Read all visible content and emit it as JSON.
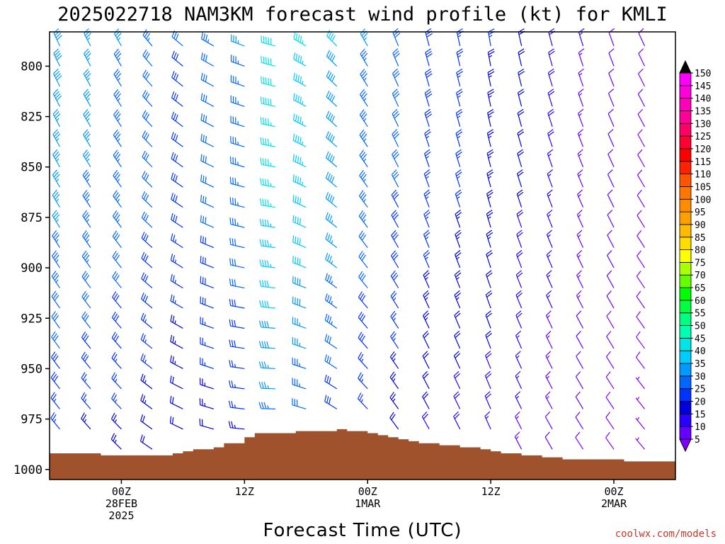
{
  "chart_data": {
    "type": "wind-barb time-height",
    "title": "2025022718 NAM3KM forecast wind profile (kt) for KMLI",
    "xlabel": "Forecast Time (UTC)",
    "credit": "coolwx.com/models",
    "y_axis": {
      "label": "",
      "scale": "pressure (hPa), inverted",
      "range": [
        1005,
        783
      ],
      "ticks": [
        800,
        825,
        850,
        875,
        900,
        925,
        950,
        975,
        1000
      ]
    },
    "x_axis": {
      "range_hours_from_00Z_28FEB": [
        -7,
        54
      ],
      "ticks": [
        {
          "hour": 0,
          "lines": [
            "00Z",
            "28FEB",
            "2025"
          ]
        },
        {
          "hour": 12,
          "lines": [
            "12Z"
          ]
        },
        {
          "hour": 24,
          "lines": [
            "00Z",
            "1MAR"
          ]
        },
        {
          "hour": 36,
          "lines": [
            "12Z"
          ]
        },
        {
          "hour": 48,
          "lines": [
            "00Z",
            "2MAR"
          ]
        }
      ]
    },
    "colorbar": {
      "units": "kt",
      "levels": [
        5,
        10,
        15,
        20,
        25,
        30,
        35,
        40,
        45,
        50,
        55,
        60,
        65,
        70,
        75,
        80,
        85,
        90,
        95,
        100,
        105,
        110,
        115,
        120,
        125,
        130,
        135,
        140,
        145,
        150
      ],
      "colors": [
        "#8000ff",
        "#6600ff",
        "#2a00ff",
        "#0000dd",
        "#0033ff",
        "#0066ff",
        "#0099ff",
        "#00ccff",
        "#00e5e5",
        "#00ffb0",
        "#00ff80",
        "#00ff40",
        "#00ff00",
        "#66ff00",
        "#aaff00",
        "#ffff00",
        "#ffdd00",
        "#ffbb00",
        "#ffa000",
        "#ff8c00",
        "#ff7700",
        "#ff5500",
        "#ff2200",
        "#ff0000",
        "#ff0033",
        "#ff0066",
        "#ff0099",
        "#ff00bb",
        "#ff00dd",
        "#ff00ff"
      ]
    },
    "wind_levels_hPa": [
      790,
      800,
      810,
      820,
      830,
      840,
      850,
      860,
      870,
      880,
      890,
      900,
      910,
      920,
      930,
      940,
      950,
      960,
      970,
      980,
      990
    ],
    "times_hours": [
      -6,
      -3,
      0,
      3,
      6,
      9,
      12,
      15,
      18,
      21,
      24,
      27,
      30,
      33,
      36,
      39,
      42,
      45,
      48,
      51
    ],
    "wind_summary": [
      {
        "hour": -6,
        "dir_deg": 335,
        "speed_kt": 38
      },
      {
        "hour": 0,
        "dir_deg": 330,
        "speed_kt": 35
      },
      {
        "hour": 6,
        "dir_deg": 310,
        "speed_kt": 30
      },
      {
        "hour": 12,
        "dir_deg": 290,
        "speed_kt": 35
      },
      {
        "hour": 15,
        "dir_deg": 285,
        "speed_kt": 48
      },
      {
        "hour": 18,
        "dir_deg": 300,
        "speed_kt": 45
      },
      {
        "hour": 24,
        "dir_deg": 330,
        "speed_kt": 35
      },
      {
        "hour": 30,
        "dir_deg": 345,
        "speed_kt": 28
      },
      {
        "hour": 36,
        "dir_deg": 350,
        "speed_kt": 25
      },
      {
        "hour": 42,
        "dir_deg": 345,
        "speed_kt": 18
      },
      {
        "hour": 48,
        "dir_deg": 340,
        "speed_kt": 12
      },
      {
        "hour": 51,
        "dir_deg": 335,
        "speed_kt": 10
      }
    ],
    "surface_pressure_hPa": [
      {
        "hour": -7,
        "value": 992
      },
      {
        "hour": -5,
        "value": 992
      },
      {
        "hour": -2,
        "value": 993
      },
      {
        "hour": 1,
        "value": 993
      },
      {
        "hour": 4,
        "value": 993
      },
      {
        "hour": 5,
        "value": 992
      },
      {
        "hour": 6,
        "value": 991
      },
      {
        "hour": 7,
        "value": 990
      },
      {
        "hour": 9,
        "value": 989
      },
      {
        "hour": 10,
        "value": 987
      },
      {
        "hour": 12,
        "value": 984
      },
      {
        "hour": 13,
        "value": 982
      },
      {
        "hour": 15,
        "value": 982
      },
      {
        "hour": 17,
        "value": 981
      },
      {
        "hour": 19,
        "value": 981
      },
      {
        "hour": 21,
        "value": 980
      },
      {
        "hour": 22,
        "value": 981
      },
      {
        "hour": 24,
        "value": 982
      },
      {
        "hour": 25,
        "value": 983
      },
      {
        "hour": 26,
        "value": 984
      },
      {
        "hour": 27,
        "value": 985
      },
      {
        "hour": 28,
        "value": 986
      },
      {
        "hour": 29,
        "value": 987
      },
      {
        "hour": 31,
        "value": 988
      },
      {
        "hour": 33,
        "value": 989
      },
      {
        "hour": 35,
        "value": 990
      },
      {
        "hour": 36,
        "value": 991
      },
      {
        "hour": 37,
        "value": 992
      },
      {
        "hour": 39,
        "value": 993
      },
      {
        "hour": 41,
        "value": 994
      },
      {
        "hour": 43,
        "value": 995
      },
      {
        "hour": 46,
        "value": 995
      },
      {
        "hour": 49,
        "value": 996
      },
      {
        "hour": 54,
        "value": 996
      }
    ],
    "colors": {
      "terrain": "#a0522d",
      "frame": "#000000",
      "credit": "#c0392b"
    }
  }
}
